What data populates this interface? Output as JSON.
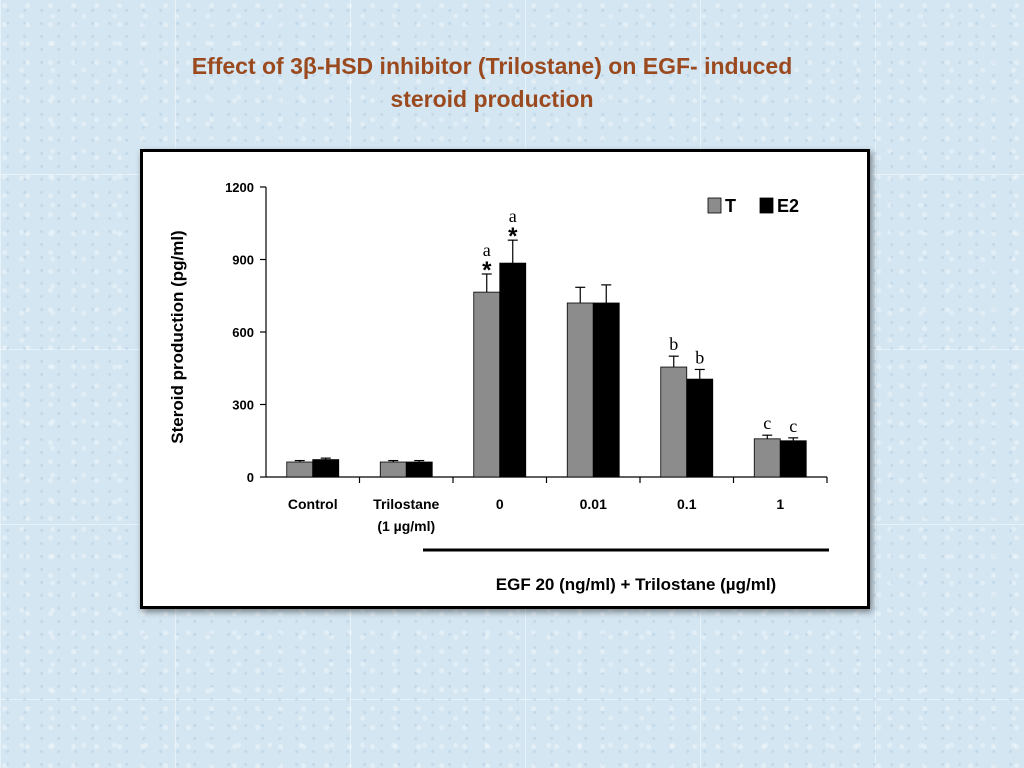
{
  "slide": {
    "title_line1": "Effect of 3β-HSD inhibitor (Trilostane) on EGF- induced",
    "title_line2": "steroid production",
    "title_color": "#9b4a1f"
  },
  "chart_data": {
    "type": "bar",
    "title": "",
    "ylabel": "Steroid production (pg/ml)",
    "xlabel": "EGF 20 (ng/ml) + Trilostane (µg/ml)",
    "ylim": [
      0,
      1200
    ],
    "yticks": [
      "0",
      "300",
      "600",
      "900",
      "1200"
    ],
    "grid": false,
    "legend_position": "top-right",
    "categories": [
      {
        "line1": "Control",
        "line2": ""
      },
      {
        "line1": "Trilostane",
        "line2": "(1 µg/ml)"
      },
      {
        "line1": "0",
        "line2": ""
      },
      {
        "line1": "0.01",
        "line2": ""
      },
      {
        "line1": "0.1",
        "line2": ""
      },
      {
        "line1": "1",
        "line2": ""
      }
    ],
    "series": [
      {
        "name": "T",
        "color": "#8c8c8c",
        "values": [
          62,
          62,
          765,
          720,
          455,
          158
        ],
        "errors": [
          6,
          6,
          75,
          65,
          45,
          15
        ],
        "annotations": [
          "",
          "",
          "a",
          "",
          "b",
          "c"
        ],
        "stars": [
          "",
          "",
          "*",
          "",
          "",
          ""
        ]
      },
      {
        "name": "E2",
        "color": "#000000",
        "values": [
          72,
          62,
          885,
          720,
          405,
          150
        ],
        "errors": [
          6,
          6,
          95,
          75,
          40,
          12
        ],
        "annotations": [
          "",
          "",
          "a",
          "",
          "b",
          "c"
        ],
        "stars": [
          "",
          "",
          "*",
          "",
          "",
          ""
        ]
      }
    ]
  }
}
